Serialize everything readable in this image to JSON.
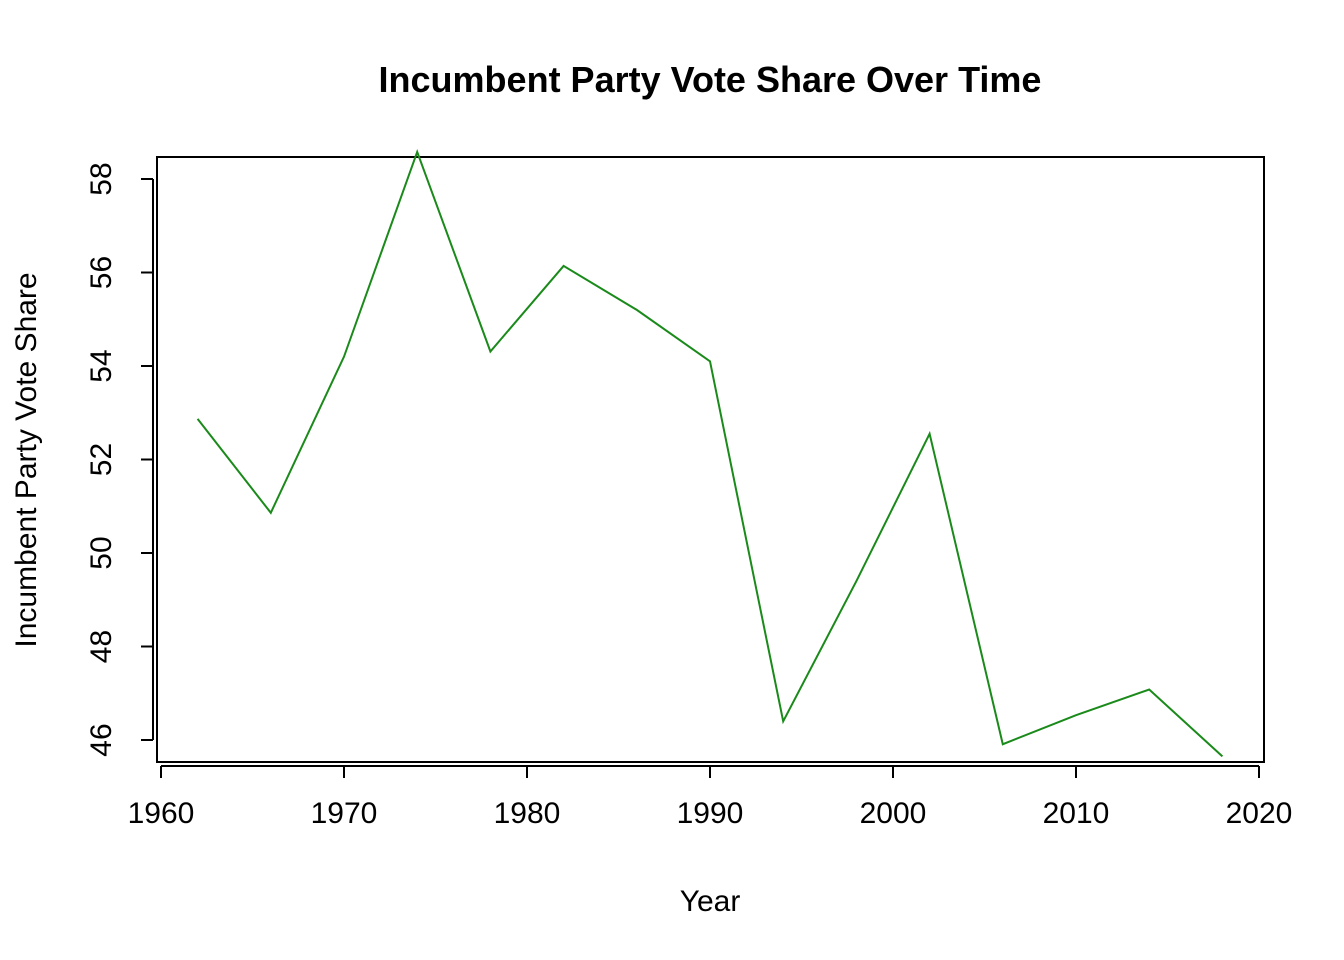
{
  "chart_data": {
    "type": "line",
    "title": "Incumbent Party Vote Share Over Time",
    "xlabel": "Year",
    "ylabel": "Incumbent Party Vote Share",
    "xlim": [
      1960,
      2020
    ],
    "ylim": [
      45.6,
      58.6
    ],
    "x_ticks": [
      1960,
      1970,
      1980,
      1990,
      2000,
      2010,
      2020
    ],
    "y_ticks": [
      46,
      48,
      50,
      52,
      54,
      56,
      58
    ],
    "grid": false,
    "legend": "none",
    "line_color": "#1a8a1a",
    "series": [
      {
        "x": [
          1962,
          1966,
          1970,
          1974,
          1978,
          1982,
          1986,
          1990,
          1994,
          1998,
          2002,
          2006,
          2010,
          2014,
          2018
        ],
        "values": [
          52.87,
          50.86,
          54.2,
          58.58,
          54.31,
          56.14,
          55.2,
          54.1,
          46.4,
          49.4,
          52.55,
          45.91,
          46.53,
          47.08,
          45.65
        ]
      }
    ]
  }
}
